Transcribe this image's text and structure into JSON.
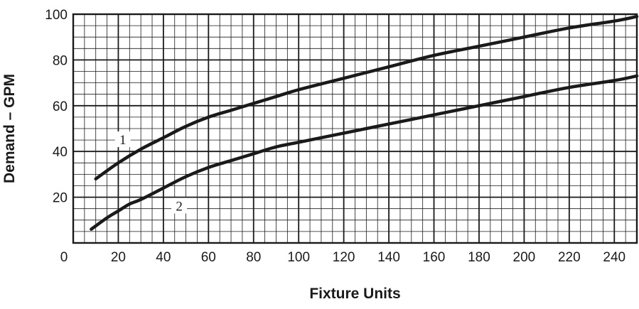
{
  "chart_data": {
    "type": "line",
    "title": "",
    "xlabel": "Fixture Units",
    "ylabel": "Demand – GPM",
    "xlim": [
      0,
      250
    ],
    "ylim": [
      0,
      100
    ],
    "x_ticks": [
      "0",
      "20",
      "40",
      "60",
      "80",
      "100",
      "120",
      "140",
      "160",
      "180",
      "200",
      "220",
      "240"
    ],
    "y_ticks": [
      "20",
      "40",
      "60",
      "80",
      "100"
    ],
    "grid": true,
    "grid_minor_step": [
      5,
      5
    ],
    "grid_major_step": [
      20,
      20
    ],
    "series": [
      {
        "name": "1",
        "x": [
          10,
          20,
          30,
          40,
          50,
          60,
          70,
          80,
          90,
          100,
          120,
          140,
          160,
          180,
          200,
          220,
          240,
          250
        ],
        "y": [
          28,
          35,
          41,
          46,
          51,
          55,
          58,
          61,
          64,
          67,
          72,
          77,
          82,
          86,
          90,
          94,
          97,
          99
        ]
      },
      {
        "name": "2",
        "x": [
          8,
          15,
          20,
          25,
          30,
          40,
          50,
          60,
          70,
          80,
          90,
          100,
          120,
          140,
          160,
          180,
          200,
          220,
          240,
          250
        ],
        "y": [
          6,
          11,
          14,
          17,
          19,
          24,
          29,
          33,
          36,
          39,
          42,
          44,
          48,
          52,
          56,
          60,
          64,
          68,
          71,
          73
        ]
      }
    ],
    "curve_labels": [
      "1",
      "2"
    ],
    "colors": {
      "ink": "#1a1a1a",
      "background": "#ffffff",
      "label_bg": "#ffffff"
    }
  }
}
